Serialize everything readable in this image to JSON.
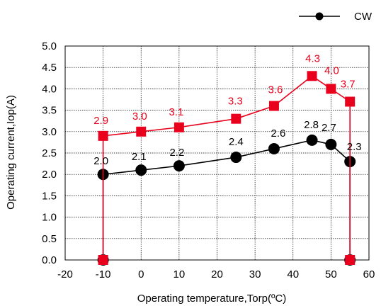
{
  "chart_data": {
    "type": "line",
    "xlabel": "Operating temperature,Torp(ºC)",
    "ylabel": "Operating current,Iop(A)",
    "xlim": [
      -20,
      60
    ],
    "ylim": [
      0,
      5
    ],
    "xticks": [
      "-20",
      "-10",
      "0",
      "10",
      "20",
      "30",
      "40",
      "50",
      "60"
    ],
    "yticks": [
      "0.0",
      "0.5",
      "1.0",
      "1.5",
      "2.0",
      "2.5",
      "3.0",
      "3.5",
      "4.0",
      "4.5",
      "5.0"
    ],
    "grid": true,
    "legend": {
      "placement": "top-right",
      "entries": [
        "CW"
      ]
    },
    "series": [
      {
        "name": "CW",
        "color": "#000000",
        "marker": "circle",
        "x": [
          -10,
          -10,
          0,
          10,
          25,
          35,
          45,
          50,
          55,
          55
        ],
        "y": [
          0,
          2.0,
          2.1,
          2.2,
          2.4,
          2.6,
          2.8,
          2.7,
          2.3,
          0
        ],
        "labels": [
          "2.0",
          "2.1",
          "2.2",
          "2.4",
          "2.6",
          "2.8",
          "2.7",
          "2.3"
        ]
      },
      {
        "color": "#e8001c",
        "marker": "square",
        "x": [
          -10,
          -10,
          0,
          10,
          25,
          35,
          45,
          50,
          55,
          55
        ],
        "y": [
          0,
          2.9,
          3.0,
          3.1,
          3.3,
          3.6,
          4.3,
          4.0,
          3.7,
          0
        ],
        "labels": [
          "2.9",
          "3.0",
          "3.1",
          "3.3",
          "3.6",
          "4.3",
          "4.0",
          "3.7"
        ]
      }
    ]
  }
}
